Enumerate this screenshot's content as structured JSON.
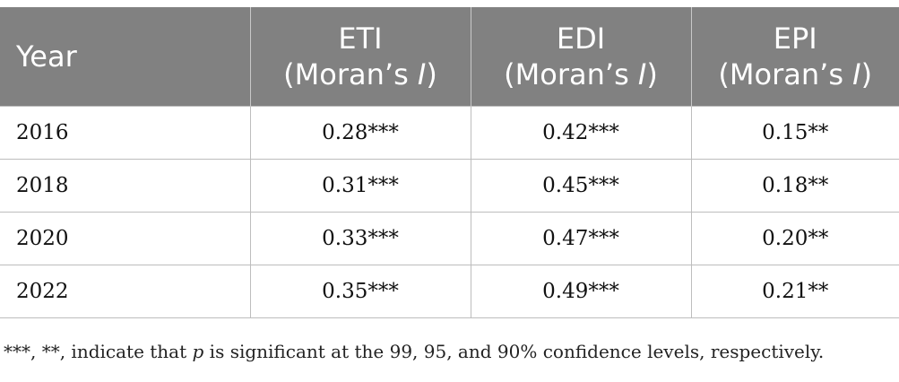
{
  "table": {
    "headers": [
      {
        "line1": "Year",
        "line2": ""
      },
      {
        "line1": "ETI",
        "line2_prefix": "(Moran’s ",
        "line2_italic": "I",
        "line2_suffix": ")"
      },
      {
        "line1": "EDI",
        "line2_prefix": "(Moran’s ",
        "line2_italic": "I",
        "line2_suffix": ")"
      },
      {
        "line1": "EPI",
        "line2_prefix": "(Moran’s ",
        "line2_italic": "I",
        "line2_suffix": ")"
      }
    ],
    "rows": [
      [
        "2016",
        "0.28***",
        "0.42***",
        "0.15**"
      ],
      [
        "2018",
        "0.31***",
        "0.45***",
        "0.18**"
      ],
      [
        "2020",
        "0.33***",
        "0.47***",
        "0.20**"
      ],
      [
        "2022",
        "0.35***",
        "0.49***",
        "0.21**"
      ]
    ]
  },
  "footnote": {
    "prefix": "***, **, indicate that ",
    "italic": "p",
    "suffix": " is significant at the 99, 95, and 90% confidence levels, respectively."
  },
  "colors": {
    "header_bg": "#818181",
    "header_text": "#ffffff",
    "rule": "#bdbdbd"
  }
}
